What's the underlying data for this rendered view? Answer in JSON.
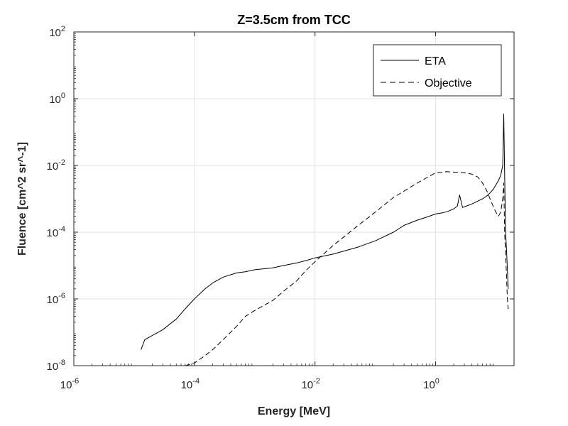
{
  "chart_data": {
    "type": "line",
    "title": "Z=3.5cm from TCC",
    "xlabel": "Energy [MeV]",
    "ylabel": "Fluence [cm^2 sr^-1]",
    "xscale": "log",
    "yscale": "log",
    "xlim": [
      1e-06,
      20
    ],
    "ylim": [
      1e-08,
      100
    ],
    "grid": true,
    "legend_position": "top-right",
    "x_tick_exponents": [
      -6,
      -4,
      -2,
      0
    ],
    "y_tick_exponents": [
      -8,
      -6,
      -4,
      -2,
      0,
      2
    ],
    "tick_base": "10",
    "series": [
      {
        "name": "ETA",
        "style": "solid",
        "color": "#000000",
        "x": [
          1.3e-05,
          1.5e-05,
          2e-05,
          3e-05,
          5e-05,
          7e-05,
          0.0001,
          0.00015,
          0.0002,
          0.0003,
          0.0005,
          0.0007,
          0.001,
          0.002,
          0.003,
          0.005,
          0.007,
          0.01,
          0.02,
          0.05,
          0.1,
          0.2,
          0.3,
          0.5,
          0.7,
          1.0,
          1.3,
          1.6,
          2.0,
          2.3,
          2.5,
          2.8,
          3.2,
          4.0,
          5.0,
          6.0,
          7.0,
          8.0,
          9.0,
          10.0,
          11.0,
          12.0,
          13.0,
          13.5,
          14.0,
          14.5,
          15.0,
          15.5,
          16.0
        ],
        "y": [
          3e-08,
          6e-08,
          8e-08,
          1.2e-07,
          2.5e-07,
          5e-07,
          1e-06,
          2e-06,
          3e-06,
          4.5e-06,
          6e-06,
          6.5e-06,
          7.5e-06,
          8.5e-06,
          1e-05,
          1.2e-05,
          1.4e-05,
          1.7e-05,
          2.2e-05,
          3.5e-05,
          5.5e-05,
          0.0001,
          0.00016,
          0.00023,
          0.00028,
          0.00035,
          0.00038,
          0.00042,
          0.0005,
          0.0006,
          0.0013,
          0.00055,
          0.0006,
          0.0007,
          0.00085,
          0.001,
          0.0012,
          0.0015,
          0.0019,
          0.0026,
          0.0035,
          0.005,
          0.01,
          0.35,
          0.005,
          0.0001,
          3e-05,
          8e-06,
          2e-06
        ]
      },
      {
        "name": "Objective",
        "style": "dashed",
        "color": "#000000",
        "x": [
          7e-05,
          0.0001,
          0.00015,
          0.0002,
          0.0003,
          0.0005,
          0.0007,
          0.001,
          0.002,
          0.003,
          0.005,
          0.007,
          0.01,
          0.02,
          0.05,
          0.1,
          0.2,
          0.5,
          1.0,
          1.5,
          2.0,
          3.0,
          4.0,
          5.0,
          6.0,
          7.0,
          8.0,
          9.0,
          10.0,
          11.0,
          12.0,
          13.0,
          13.5,
          14.0,
          14.5,
          15.0,
          15.5,
          16.0
        ],
        "y": [
          1e-08,
          1.2e-08,
          2e-08,
          3e-08,
          6e-08,
          1.5e-07,
          3e-07,
          4.5e-07,
          9e-07,
          1.7e-06,
          3.5e-06,
          7e-06,
          1.3e-05,
          4e-05,
          0.00015,
          0.0004,
          0.0011,
          0.003,
          0.006,
          0.0065,
          0.0063,
          0.006,
          0.0055,
          0.0045,
          0.003,
          0.0018,
          0.001,
          0.0006,
          0.0004,
          0.0003,
          0.0004,
          0.001,
          0.003,
          0.0001,
          2e-05,
          5e-06,
          1e-06,
          5e-07
        ]
      }
    ]
  }
}
